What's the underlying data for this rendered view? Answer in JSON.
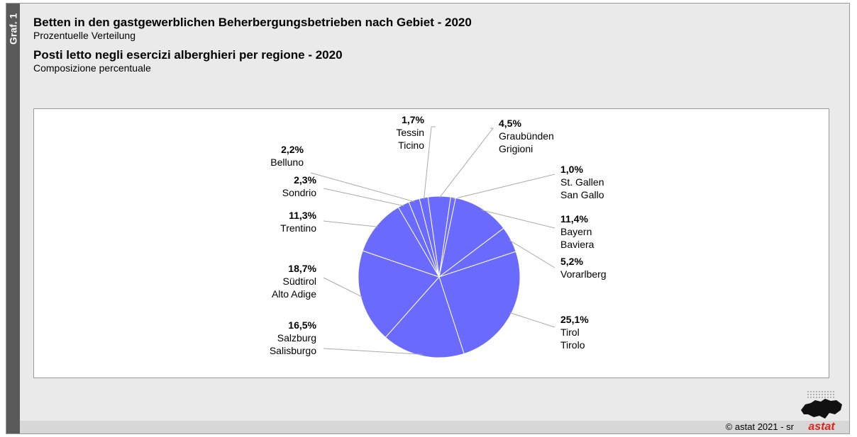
{
  "side_label": "Graf. 1",
  "title_de": "Betten in den gastgewerblichen Beherbergungsbetrieben nach Gebiet - 2020",
  "subtitle_de": "Prozentuelle Verteilung",
  "title_it": "Posti letto negli esercizi alberghieri per regione - 2020",
  "subtitle_it": "Composizione percentuale",
  "copyright": "© astat 2021 - sr",
  "logo_text": "astat",
  "colors": {
    "slice": "#6a6aff",
    "slice_stroke": "#ffffff",
    "leader": "#aaaaaa",
    "logo": "#e2231a"
  },
  "chart_data": {
    "type": "pie",
    "start_angle_deg": -8,
    "direction": "clockwise",
    "slices": [
      {
        "value": 4.5,
        "pct_label": "4,5%",
        "name_lines": [
          "Graubünden",
          "Grigioni"
        ]
      },
      {
        "value": 1.0,
        "pct_label": "1,0%",
        "name_lines": [
          "St. Gallen",
          "San Gallo"
        ]
      },
      {
        "value": 11.4,
        "pct_label": "11,4%",
        "name_lines": [
          "Bayern",
          "Baviera"
        ]
      },
      {
        "value": 5.2,
        "pct_label": "5,2%",
        "name_lines": [
          "Vorarlberg"
        ]
      },
      {
        "value": 25.1,
        "pct_label": "25,1%",
        "name_lines": [
          "Tirol",
          "Tirolo"
        ]
      },
      {
        "value": 16.5,
        "pct_label": "16,5%",
        "name_lines": [
          "Salzburg",
          "Salisburgo"
        ]
      },
      {
        "value": 18.7,
        "pct_label": "18,7%",
        "name_lines": [
          "Südtirol",
          "Alto Adige"
        ]
      },
      {
        "value": 11.3,
        "pct_label": "11,3%",
        "name_lines": [
          "Trentino"
        ]
      },
      {
        "value": 2.3,
        "pct_label": "2,3%",
        "name_lines": [
          "Sondrio"
        ]
      },
      {
        "value": 2.2,
        "pct_label": "2,2%",
        "name_lines": [
          "Belluno"
        ]
      },
      {
        "value": 1.7,
        "pct_label": "1,7%",
        "name_lines": [
          "Tessin",
          "Ticino"
        ]
      }
    ]
  }
}
